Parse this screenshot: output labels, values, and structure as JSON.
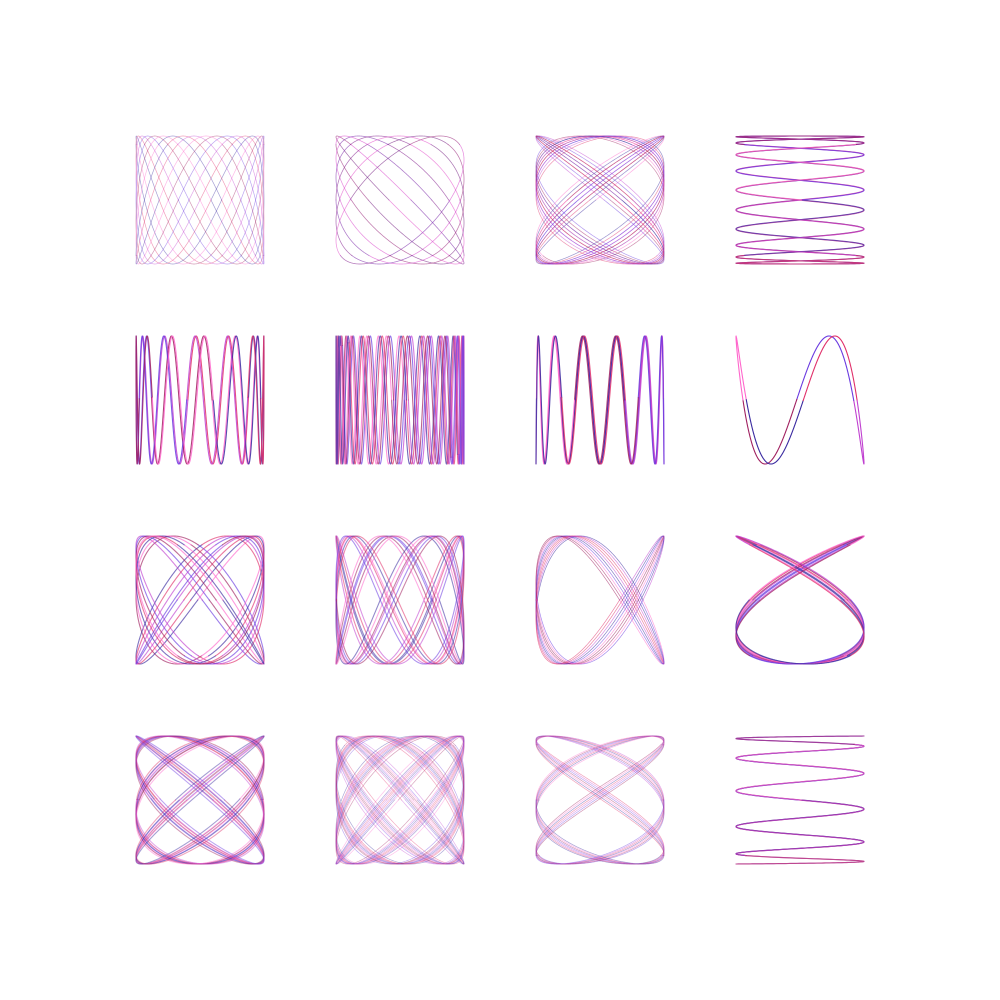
{
  "palette": {
    "background": "#ffffff",
    "stroke_colors": [
      "#e0306a",
      "#c040d0",
      "#6a3ae0",
      "#a02060",
      "#ff66cc",
      "#3a2aa0"
    ]
  },
  "grid": {
    "rows": 4,
    "columns": 4,
    "tiles": [
      {
        "fx": 1,
        "fy": 2,
        "phase": 0.0,
        "passes": 9,
        "spread": 0.055,
        "opacity": 0.45
      },
      {
        "fx": 1,
        "fy": 1,
        "phase": 0.0,
        "passes": 14,
        "spread": 0.11,
        "opacity": 0.4
      },
      {
        "fx": 5,
        "fy": 4,
        "phase": 0.3,
        "passes": 6,
        "spread": 0.03,
        "opacity": 0.5
      },
      {
        "fx": 10,
        "fy": 1,
        "phase": 0.0,
        "passes": 3,
        "spread": 0.008,
        "opacity": 0.7
      },
      {
        "fx": 1,
        "fy": 12,
        "phase": 0.2,
        "passes": 2,
        "spread": 0.006,
        "opacity": 0.85
      },
      {
        "fx": 1,
        "fy": 19,
        "phase": 0.1,
        "passes": 3,
        "spread": 0.01,
        "opacity": 0.7
      },
      {
        "fx": 1,
        "fy": 12,
        "phase": 0.4,
        "passes": 2,
        "spread": 0.006,
        "opacity": 0.85
      },
      {
        "fx": 1,
        "fy": 3,
        "phase": 1.1,
        "passes": 1,
        "spread": 0.0,
        "opacity": 1.0
      },
      {
        "fx": 3,
        "fy": 4,
        "phase": 0.2,
        "passes": 4,
        "spread": 0.035,
        "opacity": 0.65
      },
      {
        "fx": 4,
        "fy": 9,
        "phase": 0.6,
        "passes": 3,
        "spread": 0.02,
        "opacity": 0.55
      },
      {
        "fx": 2,
        "fy": 3,
        "phase": 0.5,
        "passes": 5,
        "spread": 0.03,
        "opacity": 0.6
      },
      {
        "fx": 3,
        "fy": 2,
        "phase": 0.8,
        "passes": 4,
        "spread": 0.025,
        "opacity": 0.75
      },
      {
        "fx": 7,
        "fy": 6,
        "phase": 0.3,
        "passes": 4,
        "spread": 0.02,
        "opacity": 0.45
      },
      {
        "fx": 7,
        "fy": 8,
        "phase": 0.15,
        "passes": 5,
        "spread": 0.02,
        "opacity": 0.4
      },
      {
        "fx": 3,
        "fy": 2,
        "phase": 1.4,
        "passes": 7,
        "spread": 0.015,
        "opacity": 0.45
      },
      {
        "fx": 11,
        "fy": 1,
        "phase": 0.0,
        "passes": 3,
        "spread": 0.006,
        "opacity": 0.55
      }
    ]
  }
}
